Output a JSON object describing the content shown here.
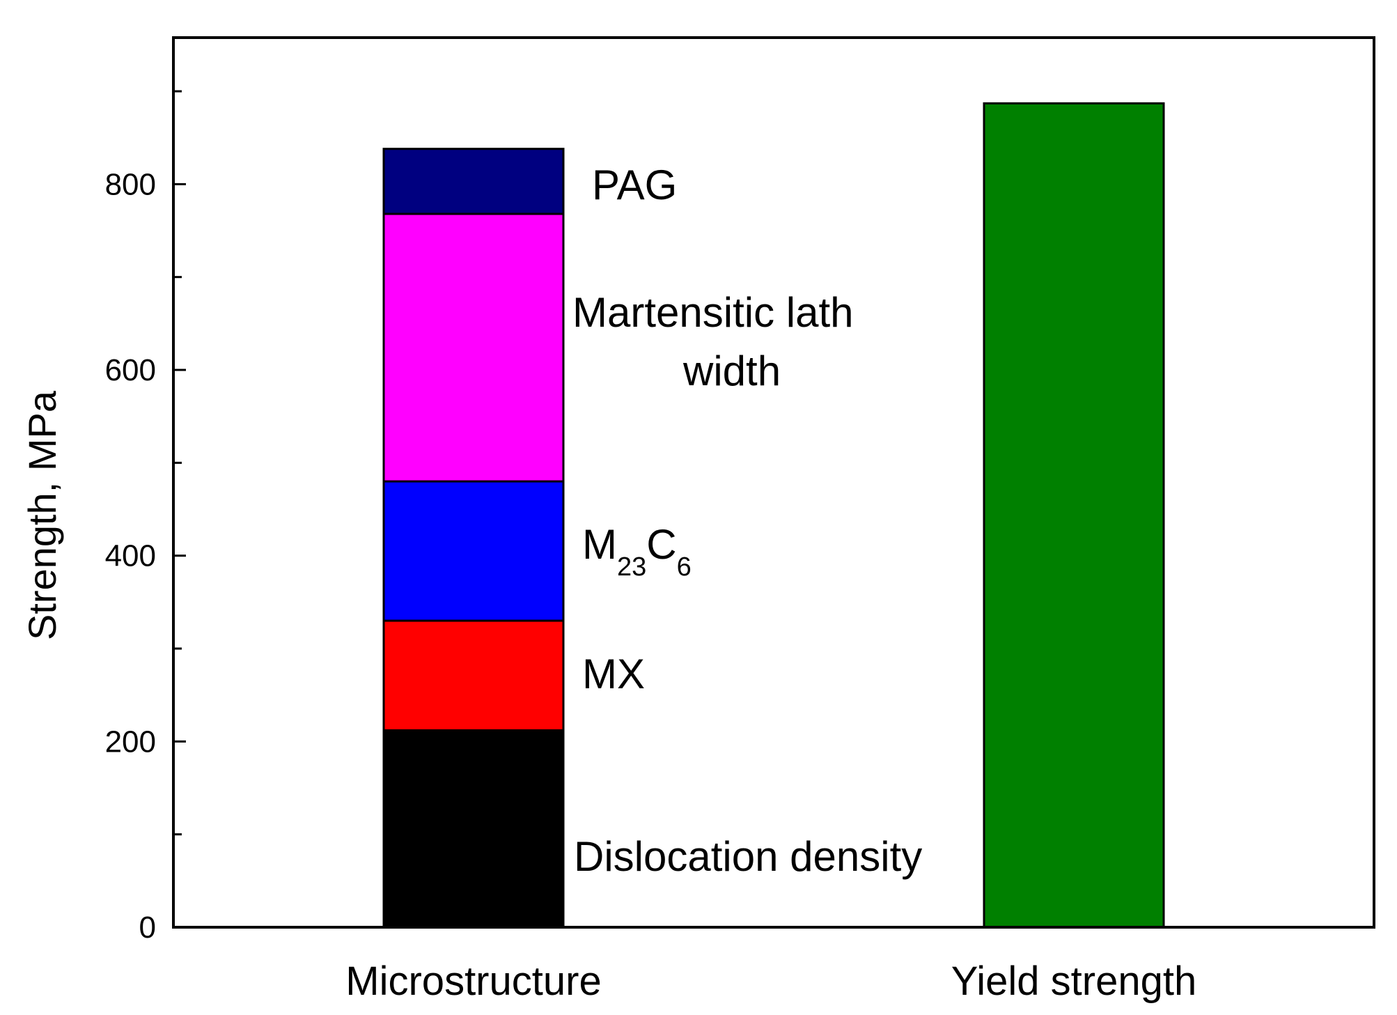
{
  "chart_data": {
    "type": "bar",
    "stacked": true,
    "ylabel": "Strength, MPa",
    "xlabel": "",
    "ylim": [
      0,
      950
    ],
    "yticks": [
      0,
      200,
      400,
      600,
      800
    ],
    "categories": [
      "Microstructure",
      "Yield strength"
    ],
    "stacks": [
      {
        "category": "Microstructure",
        "segments": [
          {
            "name": "Dislocation density",
            "value": 212,
            "color": "#000000"
          },
          {
            "name": "MX",
            "value": 118,
            "color": "#ff0000"
          },
          {
            "name": "M23C6",
            "value": 150,
            "color": "#0000ff"
          },
          {
            "name": "Martensitic lath width",
            "value": 288,
            "color": "#ff00ff"
          },
          {
            "name": "PAG",
            "value": 70,
            "color": "#000080"
          }
        ]
      },
      {
        "category": "Yield strength",
        "segments": [
          {
            "name": "Yield strength",
            "value": 887,
            "color": "#008000"
          }
        ]
      }
    ],
    "annotations": {
      "pag": "PAG",
      "lath_line1": "Martensitic lath",
      "lath_line2": "width",
      "m23c6_main": "M",
      "m23c6_sub1": "23",
      "m23c6_mid": "C",
      "m23c6_sub2": "6",
      "mx": "MX",
      "dislocation": "Dislocation density"
    }
  }
}
